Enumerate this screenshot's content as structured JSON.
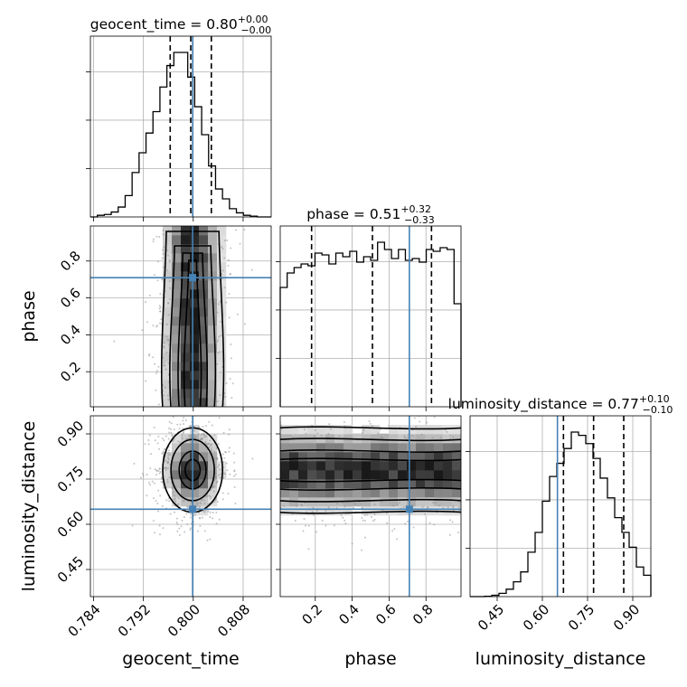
{
  "chart_data": {
    "type": "corner",
    "params": [
      "geocent_time",
      "phase",
      "luminosity_distance"
    ],
    "axis_labels": {
      "geocent_time": "geocent_time",
      "phase": "phase",
      "luminosity_distance": "luminosity_distance"
    },
    "ranges": {
      "geocent_time": [
        0.7835,
        0.8125
      ],
      "phase": [
        0.01,
        0.99
      ],
      "luminosity_distance": [
        0.36,
        0.96
      ]
    },
    "ticks": {
      "geocent_time": [
        "0.784",
        "0.792",
        "0.800",
        "0.808"
      ],
      "phase": [
        "0.2",
        "0.4",
        "0.6",
        "0.8"
      ],
      "luminosity_distance": [
        "0.45",
        "0.60",
        "0.75",
        "0.90"
      ]
    },
    "truths": {
      "geocent_time": 0.7999,
      "phase": 0.71,
      "luminosity_distance": 0.65
    },
    "titles": [
      {
        "param": "geocent_time",
        "lhs": "geocent_time = 0.80",
        "plus": "+0.00",
        "minus": "−0.00"
      },
      {
        "param": "phase",
        "lhs": "phase = 0.51",
        "plus": "+0.32",
        "minus": "−0.33"
      },
      {
        "param": "luminosity_distance",
        "lhs": "luminosity_distance = 0.77",
        "plus": "+0.10",
        "minus": "−0.10"
      }
    ],
    "quantiles": {
      "geocent_time": [
        0.7963,
        0.7996,
        0.8029
      ],
      "phase": [
        0.18,
        0.51,
        0.83
      ],
      "luminosity_distance": [
        0.67,
        0.77,
        0.87
      ]
    },
    "hist_1d": {
      "geocent_time": {
        "edges_range": [
          0.7835,
          0.8125
        ],
        "counts": [
          0,
          0.01,
          0.015,
          0.03,
          0.06,
          0.13,
          0.27,
          0.39,
          0.51,
          0.64,
          0.79,
          0.92,
          1.0,
          1.0,
          0.85,
          0.67,
          0.5,
          0.31,
          0.17,
          0.11,
          0.05,
          0.025,
          0.01,
          0.005,
          0,
          0
        ]
      },
      "phase": {
        "edges_range": [
          0.01,
          0.99
        ],
        "counts": [
          0.66,
          0.74,
          0.77,
          0.79,
          0.78,
          0.85,
          0.84,
          0.79,
          0.85,
          0.83,
          0.86,
          0.8,
          0.83,
          0.81,
          0.91,
          0.87,
          0.82,
          0.87,
          0.81,
          0.82,
          0.8,
          0.87,
          0.86,
          0.88,
          0.87,
          0.57
        ]
      },
      "luminosity_distance": {
        "edges_range": [
          0.36,
          0.96
        ],
        "counts": [
          0,
          0,
          0.002,
          0.008,
          0.02,
          0.045,
          0.09,
          0.15,
          0.27,
          0.39,
          0.58,
          0.73,
          0.81,
          0.9,
          1.0,
          0.98,
          0.93,
          0.84,
          0.72,
          0.6,
          0.48,
          0.39,
          0.3,
          0.18,
          0.13
        ]
      }
    },
    "hist_2d": [
      {
        "x": "geocent_time",
        "y": "phase",
        "center": [
          0.7999,
          0.5
        ],
        "sigma": [
          0.0024,
          0.3
        ],
        "flat_y": true
      },
      {
        "x": "geocent_time",
        "y": "luminosity_distance",
        "center": [
          0.7999,
          0.78
        ],
        "sigma": [
          0.0024,
          0.07
        ]
      },
      {
        "x": "phase",
        "y": "luminosity_distance",
        "center": [
          0.5,
          0.78
        ],
        "sigma": [
          0.3,
          0.07
        ],
        "flat_x": true
      }
    ],
    "grid": true,
    "colors": {
      "truth": "#4682b4",
      "hist": "#000000",
      "scatter": "#8a8a8a"
    }
  }
}
